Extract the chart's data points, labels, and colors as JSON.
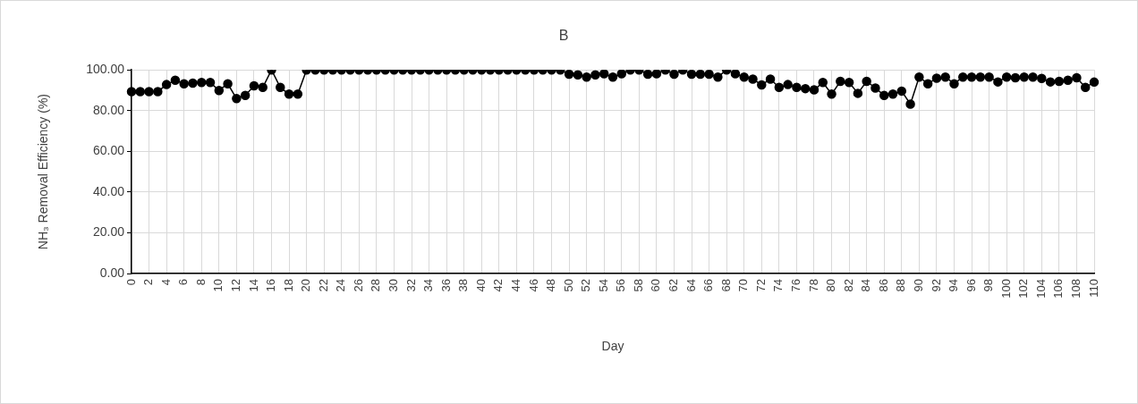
{
  "chart_data": {
    "type": "line",
    "title": "B",
    "xlabel": "Day",
    "ylabel": "NH₃ Removal Efficiency (%)",
    "categories": [
      "0",
      null,
      "2",
      null,
      "4",
      null,
      "6",
      null,
      "8",
      null,
      "10",
      null,
      "12",
      null,
      "14",
      null,
      "16",
      null,
      "18",
      null,
      "20",
      null,
      "22",
      null,
      "24",
      null,
      "26",
      null,
      "28",
      null,
      "30",
      null,
      "32",
      null,
      "34",
      null,
      "36",
      null,
      "38",
      null,
      "40",
      null,
      "42",
      null,
      "44",
      null,
      "46",
      null,
      "48",
      null,
      "50",
      null,
      "52",
      null,
      "54",
      null,
      "56",
      null,
      "58",
      null,
      "60",
      null,
      "62",
      null,
      "64",
      null,
      "66",
      null,
      "68",
      null,
      "70",
      null,
      "72",
      null,
      "74",
      null,
      "76",
      null,
      "78",
      null,
      "80",
      null,
      "82",
      null,
      "84",
      null,
      "86",
      null,
      "88",
      null,
      "90",
      null,
      "92",
      null,
      "94",
      null,
      "96",
      null,
      "98",
      null,
      "100",
      null,
      "102",
      null,
      "104",
      null,
      "106",
      null,
      "108",
      null,
      "110"
    ],
    "series": [
      {
        "color": "#000000",
        "values": [
          89.3,
          89.3,
          89.3,
          89.3,
          92.8,
          94.9,
          93.2,
          93.5,
          93.8,
          93.8,
          89.9,
          93.2,
          85.9,
          87.5,
          92.2,
          91.4,
          100,
          91.4,
          88.1,
          88.1,
          100,
          100,
          100,
          100,
          100,
          100,
          100,
          100,
          100,
          100,
          100,
          100,
          100,
          100,
          100,
          100,
          100,
          100,
          100,
          100,
          100,
          100,
          100,
          100,
          100,
          100,
          100,
          100,
          100,
          100,
          97.9,
          97.6,
          96.5,
          97.6,
          98.1,
          96.5,
          98.1,
          100,
          100,
          97.9,
          98.1,
          100,
          97.9,
          100,
          97.9,
          97.9,
          97.9,
          96.5,
          100,
          98.1,
          96.5,
          95.5,
          92.6,
          95.5,
          91.4,
          92.8,
          91.4,
          90.8,
          90.2,
          93.8,
          88.1,
          94.4,
          93.8,
          88.5,
          94.4,
          91.1,
          87.5,
          88.1,
          89.6,
          83.2,
          96.5,
          93.2,
          95.9,
          96.5,
          93.2,
          96.5,
          96.5,
          96.5,
          96.5,
          94.1,
          96.5,
          96.1,
          96.5,
          96.5,
          95.8,
          94.1,
          94.4,
          94.9,
          96.1,
          91.4,
          94
        ]
      }
    ],
    "ylim": [
      0,
      100
    ],
    "yticks": [
      {
        "value": 0,
        "label": "0.00"
      },
      {
        "value": 20,
        "label": "20.00"
      },
      {
        "value": 40,
        "label": "40.00"
      },
      {
        "value": 60,
        "label": "60.00"
      },
      {
        "value": 80,
        "label": "80.00"
      },
      {
        "value": 100,
        "label": "100.00"
      }
    ],
    "grid": true,
    "legend": false,
    "marker": "circle",
    "line_style": "solid"
  }
}
